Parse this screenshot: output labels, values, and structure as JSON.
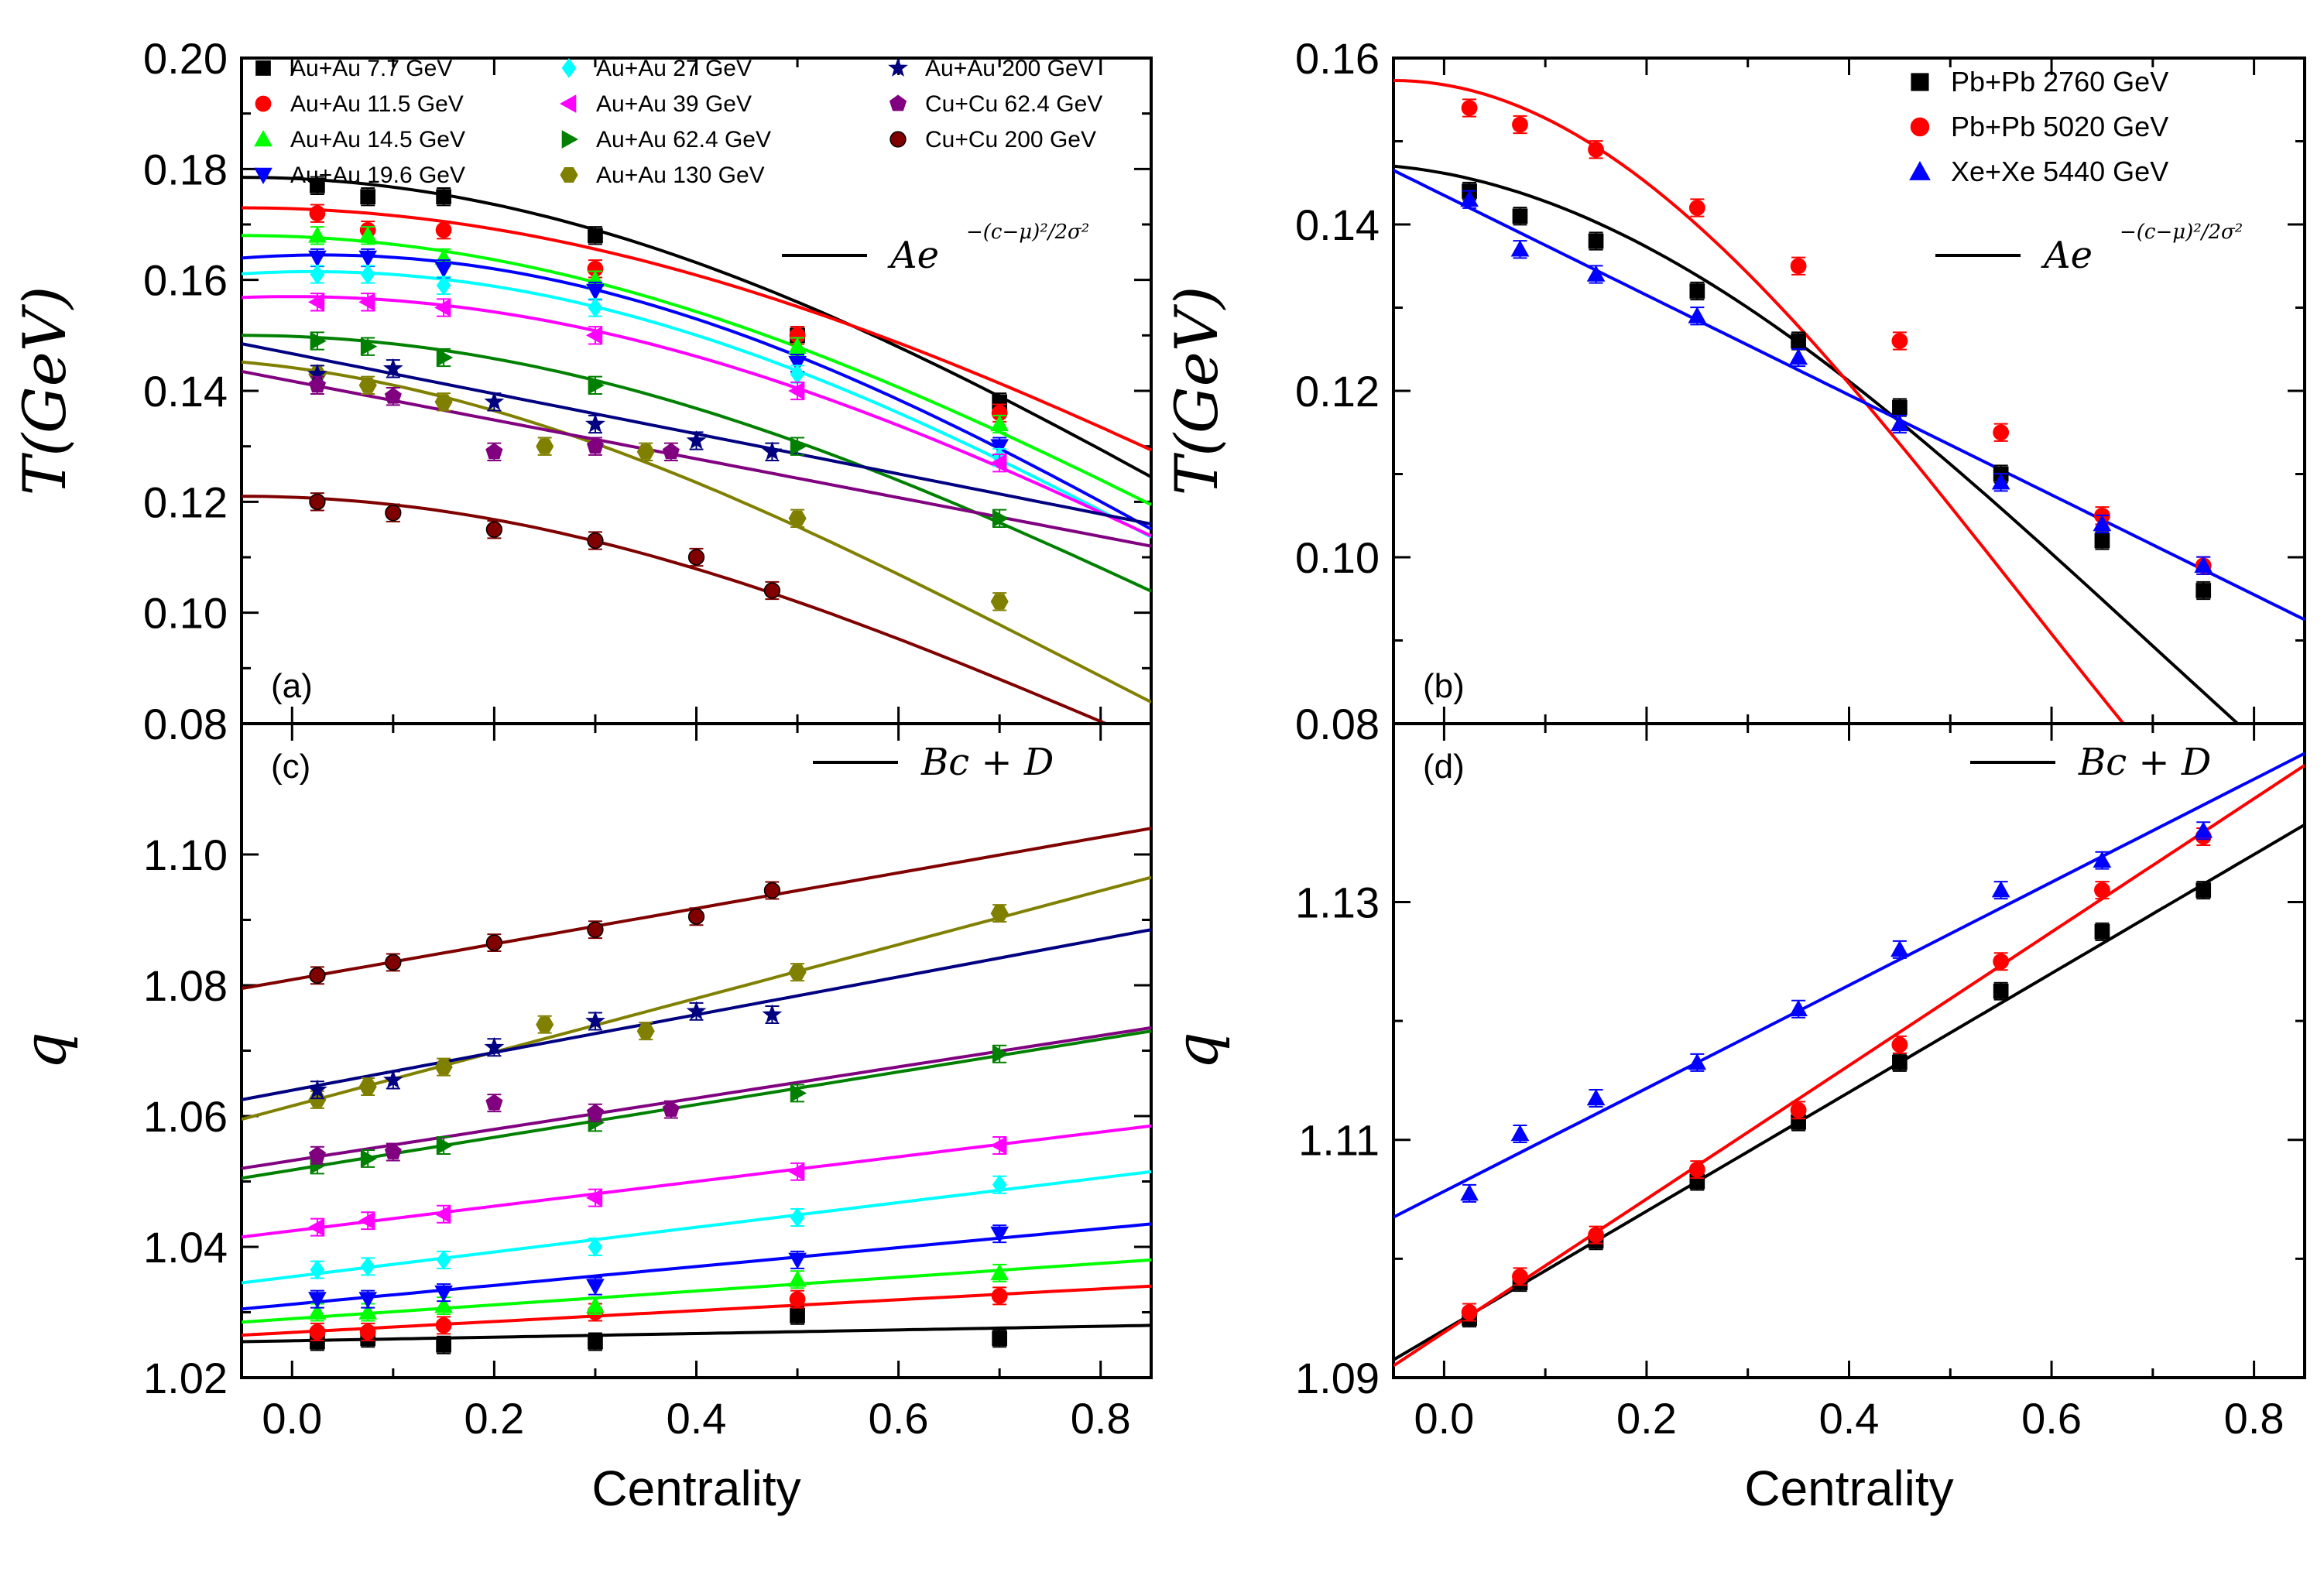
{
  "chart_data": [
    {
      "panel": "(a)",
      "type": "scatter",
      "ylabel": "T(GeV)",
      "xlim": [
        -0.05,
        0.85
      ],
      "ylim": [
        0.08,
        0.2
      ],
      "xticks": [
        "0.0",
        "0.2",
        "0.4",
        "0.6",
        "0.8"
      ],
      "yticks": [
        "0.08",
        "0.10",
        "0.12",
        "0.14",
        "0.16",
        "0.18",
        "0.20"
      ],
      "fit_label": "Ae",
      "fit_exponent": "−(c−μ)²/2σ²",
      "legend_placement": "top",
      "series": [
        {
          "name": "Au+Au 7.7 GeV",
          "color": "#000000",
          "marker": "square",
          "x": [
            0.025,
            0.075,
            0.15,
            0.3,
            0.5,
            0.7
          ],
          "y": [
            0.177,
            0.175,
            0.175,
            0.168,
            0.15,
            0.138
          ]
        },
        {
          "name": "Au+Au 11.5 GeV",
          "color": "#ff0000",
          "marker": "circle",
          "x": [
            0.025,
            0.075,
            0.15,
            0.3,
            0.5,
            0.7
          ],
          "y": [
            0.172,
            0.169,
            0.169,
            0.162,
            0.15,
            0.136
          ]
        },
        {
          "name": "Au+Au 14.5 GeV",
          "color": "#00ff00",
          "marker": "triangle-up",
          "x": [
            0.025,
            0.075,
            0.15,
            0.3,
            0.5,
            0.7
          ],
          "y": [
            0.168,
            0.168,
            0.164,
            0.16,
            0.148,
            0.134
          ]
        },
        {
          "name": "Au+Au 19.6 GeV",
          "color": "#0000ff",
          "marker": "triangle-down",
          "x": [
            0.025,
            0.075,
            0.15,
            0.3,
            0.5,
            0.7
          ],
          "y": [
            0.164,
            0.164,
            0.162,
            0.158,
            0.145,
            0.13
          ]
        },
        {
          "name": "Au+Au 27 GeV",
          "color": "#00ffff",
          "marker": "diamond",
          "x": [
            0.025,
            0.075,
            0.15,
            0.3,
            0.5,
            0.7
          ],
          "y": [
            0.161,
            0.161,
            0.159,
            0.155,
            0.143,
            0.128
          ]
        },
        {
          "name": "Au+Au 39 GeV",
          "color": "#ff00ff",
          "marker": "triangle-left",
          "x": [
            0.025,
            0.075,
            0.15,
            0.3,
            0.5,
            0.7
          ],
          "y": [
            0.156,
            0.156,
            0.155,
            0.15,
            0.14,
            0.127
          ]
        },
        {
          "name": "Au+Au 62.4 GeV",
          "color": "#008000",
          "marker": "triangle-right",
          "x": [
            0.025,
            0.075,
            0.15,
            0.3,
            0.5,
            0.7
          ],
          "y": [
            0.149,
            0.148,
            0.146,
            0.141,
            0.13,
            0.117
          ]
        },
        {
          "name": "Au+Au 130 GeV",
          "color": "#808000",
          "marker": "hexagon",
          "x": [
            0.025,
            0.075,
            0.15,
            0.25,
            0.35,
            0.5,
            0.7
          ],
          "y": [
            0.143,
            0.141,
            0.138,
            0.13,
            0.129,
            0.117,
            0.102
          ]
        },
        {
          "name": "Au+Au 200 GeV",
          "color": "#000080",
          "marker": "star",
          "x": [
            0.025,
            0.1,
            0.2,
            0.3,
            0.4,
            0.475
          ],
          "y": [
            0.143,
            0.144,
            0.138,
            0.134,
            0.131,
            0.129
          ]
        },
        {
          "name": "Cu+Cu 62.4 GeV",
          "color": "#800080",
          "marker": "pentagon",
          "x": [
            0.025,
            0.1,
            0.2,
            0.3,
            0.375
          ],
          "y": [
            0.141,
            0.139,
            0.129,
            0.13,
            0.129
          ]
        },
        {
          "name": "Cu+Cu 200 GeV",
          "color": "#800000",
          "marker": "sphere",
          "x": [
            0.025,
            0.1,
            0.2,
            0.3,
            0.4,
            0.475
          ],
          "y": [
            0.12,
            0.118,
            0.115,
            0.113,
            0.11,
            0.104
          ]
        }
      ],
      "fits": [
        {
          "color": "#000000",
          "type": "gauss",
          "A": 0.1785,
          "mu": -0.05,
          "sigma": 1.06
        },
        {
          "color": "#ff0000",
          "type": "gauss",
          "A": 0.173,
          "mu": -0.05,
          "sigma": 1.18
        },
        {
          "color": "#00ff00",
          "type": "gauss",
          "A": 0.168,
          "mu": -0.05,
          "sigma": 1.09
        },
        {
          "color": "#0000ff",
          "type": "gauss",
          "A": 0.1645,
          "mu": 0.03,
          "sigma": 0.97
        },
        {
          "color": "#00ffff",
          "type": "gauss",
          "A": 0.1615,
          "mu": 0.02,
          "sigma": 0.99
        },
        {
          "color": "#ff00ff",
          "type": "gauss",
          "A": 0.157,
          "mu": 0.0,
          "sigma": 1.06
        },
        {
          "color": "#008000",
          "type": "gauss",
          "A": 0.15,
          "mu": -0.05,
          "sigma": 1.05
        },
        {
          "color": "#808000",
          "type": "gauss",
          "A": 0.146,
          "mu": -0.15,
          "sigma": 0.95
        },
        {
          "color": "#000080",
          "type": "line",
          "y0": 0.1485,
          "y1": 0.116
        },
        {
          "color": "#800080",
          "type": "line",
          "y0": 0.1435,
          "y1": 0.112
        },
        {
          "color": "#800000",
          "type": "gauss",
          "A": 0.121,
          "mu": -0.05,
          "sigma": 0.94
        }
      ]
    },
    {
      "panel": "(b)",
      "type": "scatter",
      "ylabel": "T(GeV)",
      "xlim": [
        -0.05,
        0.85
      ],
      "ylim": [
        0.08,
        0.16
      ],
      "xticks": [
        "0.0",
        "0.2",
        "0.4",
        "0.6",
        "0.8"
      ],
      "yticks": [
        "0.08",
        "0.10",
        "0.12",
        "0.14",
        "0.16"
      ],
      "fit_label": "Ae",
      "fit_exponent": "−(c−μ)²/2σ²",
      "legend_placement": "top-right",
      "series": [
        {
          "name": "Pb+Pb 2760 GeV",
          "color": "#000000",
          "marker": "square",
          "x": [
            0.025,
            0.075,
            0.15,
            0.25,
            0.35,
            0.45,
            0.55,
            0.65,
            0.75
          ],
          "y": [
            0.144,
            0.141,
            0.138,
            0.132,
            0.126,
            0.118,
            0.11,
            0.102,
            0.096
          ]
        },
        {
          "name": "Pb+Pb 5020 GeV",
          "color": "#ff0000",
          "marker": "circle",
          "x": [
            0.025,
            0.075,
            0.15,
            0.25,
            0.35,
            0.45,
            0.55,
            0.65,
            0.75
          ],
          "y": [
            0.154,
            0.152,
            0.149,
            0.142,
            0.135,
            0.126,
            0.115,
            0.105,
            0.099
          ]
        },
        {
          "name": "Xe+Xe 5440 GeV",
          "color": "#0000ff",
          "marker": "triangle-up",
          "x": [
            0.025,
            0.075,
            0.15,
            0.25,
            0.35,
            0.45,
            0.55,
            0.65,
            0.75
          ],
          "y": [
            0.143,
            0.137,
            0.134,
            0.129,
            0.124,
            0.116,
            0.109,
            0.104,
            0.099
          ]
        }
      ],
      "fits": [
        {
          "color": "#000000",
          "type": "gauss",
          "A": 0.1473,
          "mu": -0.1,
          "sigma": 0.8
        },
        {
          "color": "#ff0000",
          "type": "gauss",
          "A": 0.1573,
          "mu": -0.05,
          "sigma": 0.62
        },
        {
          "color": "#0000ff",
          "type": "line",
          "y0": 0.1465,
          "y1": 0.0925
        }
      ]
    },
    {
      "panel": "(c)",
      "type": "scatter",
      "xlabel": "Centrality",
      "ylabel": "q",
      "xlim": [
        -0.05,
        0.85
      ],
      "ylim": [
        1.02,
        1.12
      ],
      "xticks": [
        "0.0",
        "0.2",
        "0.4",
        "0.6",
        "0.8"
      ],
      "yticks": [
        "1.02",
        "1.04",
        "1.06",
        "1.08",
        "1.10"
      ],
      "fit_label": "Bc + D",
      "series": [
        {
          "name": "Au+Au 7.7 GeV",
          "color": "#000000",
          "marker": "square",
          "x": [
            0.025,
            0.075,
            0.15,
            0.3,
            0.5,
            0.7
          ],
          "y": [
            1.0255,
            1.026,
            1.025,
            1.0255,
            1.0295,
            1.026
          ]
        },
        {
          "name": "Au+Au 11.5 GeV",
          "color": "#ff0000",
          "marker": "circle",
          "x": [
            0.025,
            0.075,
            0.15,
            0.3,
            0.5,
            0.7
          ],
          "y": [
            1.027,
            1.027,
            1.028,
            1.03,
            1.032,
            1.0325
          ]
        },
        {
          "name": "Au+Au 14.5 GeV",
          "color": "#00ff00",
          "marker": "triangle-up",
          "x": [
            0.025,
            0.075,
            0.15,
            0.3,
            0.5,
            0.7
          ],
          "y": [
            1.03,
            1.03,
            1.031,
            1.031,
            1.035,
            1.036
          ]
        },
        {
          "name": "Au+Au 19.6 GeV",
          "color": "#0000ff",
          "marker": "triangle-down",
          "x": [
            0.025,
            0.075,
            0.15,
            0.3,
            0.5,
            0.7
          ],
          "y": [
            1.032,
            1.032,
            1.033,
            1.034,
            1.038,
            1.042
          ]
        },
        {
          "name": "Au+Au 27 GeV",
          "color": "#00ffff",
          "marker": "diamond",
          "x": [
            0.025,
            0.075,
            0.15,
            0.3,
            0.5,
            0.7
          ],
          "y": [
            1.0365,
            1.037,
            1.038,
            1.04,
            1.0445,
            1.0495
          ]
        },
        {
          "name": "Au+Au 39 GeV",
          "color": "#ff00ff",
          "marker": "triangle-left",
          "x": [
            0.025,
            0.075,
            0.15,
            0.3,
            0.5,
            0.7
          ],
          "y": [
            1.043,
            1.044,
            1.045,
            1.0475,
            1.0515,
            1.0555
          ]
        },
        {
          "name": "Au+Au 62.4 GeV",
          "color": "#008000",
          "marker": "triangle-right",
          "x": [
            0.025,
            0.075,
            0.15,
            0.3,
            0.5,
            0.7
          ],
          "y": [
            1.0525,
            1.0535,
            1.0555,
            1.059,
            1.0635,
            1.0695
          ]
        },
        {
          "name": "Au+Au 130 GeV",
          "color": "#808000",
          "marker": "hexagon",
          "x": [
            0.025,
            0.075,
            0.15,
            0.25,
            0.35,
            0.5,
            0.7
          ],
          "y": [
            1.0625,
            1.0645,
            1.0675,
            1.074,
            1.073,
            1.082,
            1.091
          ]
        },
        {
          "name": "Au+Au 200 GeV",
          "color": "#000080",
          "marker": "star",
          "x": [
            0.025,
            0.1,
            0.2,
            0.3,
            0.4,
            0.475
          ],
          "y": [
            1.064,
            1.0655,
            1.0705,
            1.0745,
            1.076,
            1.0755
          ]
        },
        {
          "name": "Cu+Cu 62.4 GeV",
          "color": "#800080",
          "marker": "pentagon",
          "x": [
            0.025,
            0.1,
            0.2,
            0.3,
            0.375
          ],
          "y": [
            1.054,
            1.0545,
            1.062,
            1.0605,
            1.061
          ]
        },
        {
          "name": "Cu+Cu 200 GeV",
          "color": "#800000",
          "marker": "sphere",
          "x": [
            0.025,
            0.1,
            0.2,
            0.3,
            0.4,
            0.475
          ],
          "y": [
            1.0815,
            1.0835,
            1.0865,
            1.0885,
            1.0905,
            1.0945
          ]
        }
      ],
      "fits": [
        {
          "color": "#000000",
          "type": "line",
          "y0": 1.0255,
          "y1": 1.028
        },
        {
          "color": "#ff0000",
          "type": "line",
          "y0": 1.0265,
          "y1": 1.034
        },
        {
          "color": "#00ff00",
          "type": "line",
          "y0": 1.0285,
          "y1": 1.038
        },
        {
          "color": "#0000ff",
          "type": "line",
          "y0": 1.0305,
          "y1": 1.0435
        },
        {
          "color": "#00ffff",
          "type": "line",
          "y0": 1.0345,
          "y1": 1.0515
        },
        {
          "color": "#ff00ff",
          "type": "line",
          "y0": 1.0415,
          "y1": 1.0585
        },
        {
          "color": "#008000",
          "type": "line",
          "y0": 1.0505,
          "y1": 1.073
        },
        {
          "color": "#808000",
          "type": "line",
          "y0": 1.0595,
          "y1": 1.0965
        },
        {
          "color": "#000080",
          "type": "line",
          "y0": 1.0625,
          "y1": 1.0885
        },
        {
          "color": "#800080",
          "type": "line",
          "y0": 1.052,
          "y1": 1.0735
        },
        {
          "color": "#800000",
          "type": "line",
          "y0": 1.0795,
          "y1": 1.104
        }
      ]
    },
    {
      "panel": "(d)",
      "type": "scatter",
      "xlabel": "Centrality",
      "ylabel": "q",
      "xlim": [
        -0.05,
        0.85
      ],
      "ylim": [
        1.09,
        1.145
      ],
      "xticks": [
        "0.0",
        "0.2",
        "0.4",
        "0.6",
        "0.8"
      ],
      "yticks": [
        "1.09",
        "1.11",
        "1.13"
      ],
      "fit_label": "Bc + D",
      "series": [
        {
          "name": "Pb+Pb 2760 GeV",
          "color": "#000000",
          "marker": "square",
          "x": [
            0.025,
            0.075,
            0.15,
            0.25,
            0.35,
            0.45,
            0.55,
            0.65,
            0.75
          ],
          "y": [
            1.095,
            1.098,
            1.1015,
            1.1065,
            1.1115,
            1.1165,
            1.1225,
            1.1275,
            1.131
          ]
        },
        {
          "name": "Pb+Pb 5020 GeV",
          "color": "#ff0000",
          "marker": "circle",
          "x": [
            0.025,
            0.075,
            0.15,
            0.25,
            0.35,
            0.45,
            0.55,
            0.65,
            0.75
          ],
          "y": [
            1.0955,
            1.0985,
            1.102,
            1.1075,
            1.1125,
            1.118,
            1.125,
            1.131,
            1.1355
          ]
        },
        {
          "name": "Xe+Xe 5440 GeV",
          "color": "#0000ff",
          "marker": "triangle-up",
          "x": [
            0.025,
            0.075,
            0.15,
            0.25,
            0.35,
            0.45,
            0.55,
            0.65,
            0.75
          ],
          "y": [
            1.1055,
            1.1105,
            1.1135,
            1.1165,
            1.121,
            1.126,
            1.131,
            1.1335,
            1.136
          ]
        }
      ],
      "fits": [
        {
          "color": "#000000",
          "type": "line",
          "y0": 1.0915,
          "y1": 1.1365
        },
        {
          "color": "#ff0000",
          "type": "line",
          "y0": 1.091,
          "y1": 1.1415
        },
        {
          "color": "#0000ff",
          "type": "line",
          "y0": 1.1035,
          "y1": 1.1425
        }
      ]
    }
  ]
}
